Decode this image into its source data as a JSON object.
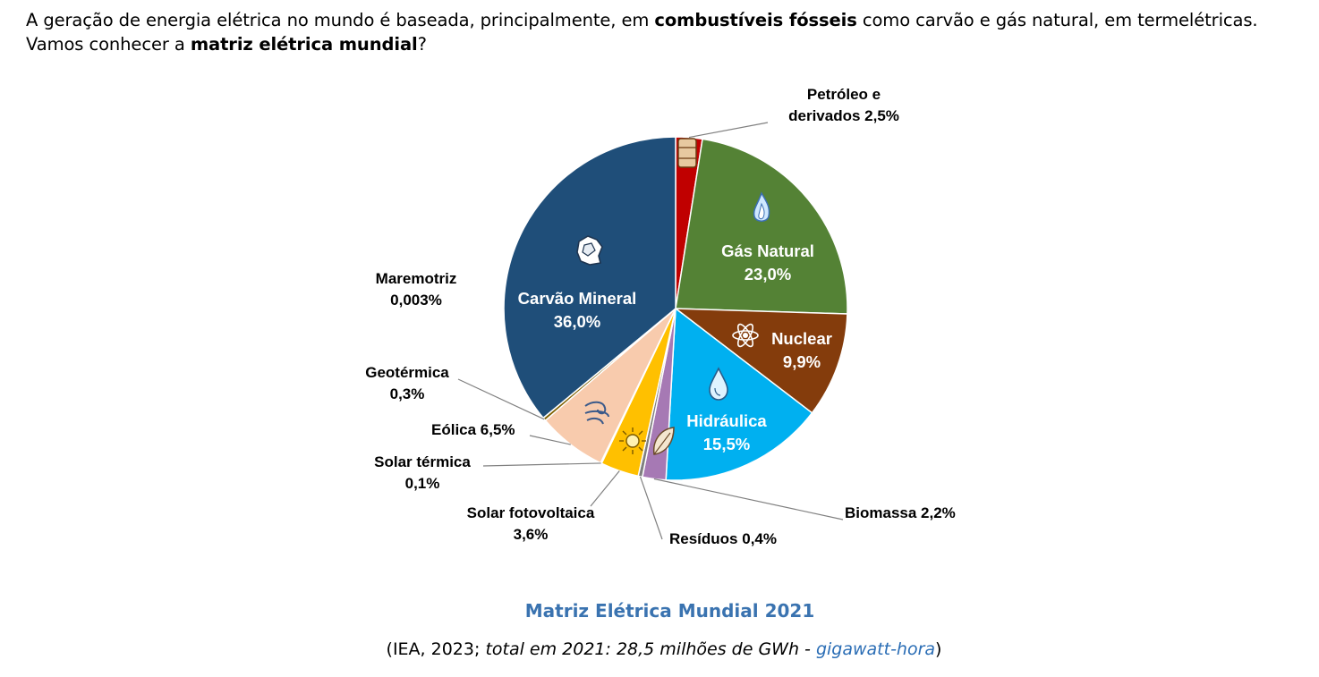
{
  "intro": {
    "part1": "A geração de energia elétrica no mundo é baseada, principalmente, em ",
    "bold1": "combustíveis fósseis",
    "part2": " como carvão e gás natural, em termelétricas. Vamos conhecer a ",
    "bold2": "matriz elétrica mundial",
    "part3": "?"
  },
  "chart_data": {
    "type": "pie",
    "title": "Matriz Elétrica Mundial 2021",
    "unit": "%",
    "slices": [
      {
        "name": "Petróleo e derivados",
        "value": 2.5,
        "label": "2,5%",
        "color": "#c00000",
        "icon": "oil-barrel-icon"
      },
      {
        "name": "Gás Natural",
        "value": 23.0,
        "label": "23,0%",
        "color": "#548235",
        "icon": "flame-icon"
      },
      {
        "name": "Nuclear",
        "value": 9.9,
        "label": "9,9%",
        "color": "#843c0c",
        "icon": "atom-icon"
      },
      {
        "name": "Hidráulica",
        "value": 15.5,
        "label": "15,5%",
        "color": "#00b0f0",
        "icon": "water-drop-icon"
      },
      {
        "name": "Biomassa",
        "value": 2.2,
        "label": "2,2%",
        "color": "#a679b4",
        "icon": "leaf-icon"
      },
      {
        "name": "Resíduos",
        "value": 0.4,
        "label": "0,4%",
        "color": "#7f7f7f",
        "icon": ""
      },
      {
        "name": "Solar fotovoltaica",
        "value": 3.6,
        "label": "3,6%",
        "color": "#ffc000",
        "icon": "sun-icon"
      },
      {
        "name": "Solar térmica",
        "value": 0.1,
        "label": "0,1%",
        "color": "#ffe699",
        "icon": ""
      },
      {
        "name": "Eólica",
        "value": 6.5,
        "label": "6,5%",
        "color": "#f8cbad",
        "icon": "wind-icon"
      },
      {
        "name": "Geotérmica",
        "value": 0.3,
        "label": "0,3%",
        "color": "#7f6000",
        "icon": ""
      },
      {
        "name": "Maremotriz",
        "value": 0.003,
        "label": "0,003%",
        "color": "#1f4e79",
        "icon": ""
      },
      {
        "name": "Carvão Mineral",
        "value": 36.0,
        "label": "36,0%",
        "color": "#1f4e79",
        "icon": "coal-icon"
      }
    ]
  },
  "labels": {
    "petroleo": [
      "Petróleo e",
      "derivados 2,5%"
    ],
    "gas": [
      "Gás Natural",
      "23,0%"
    ],
    "nuclear": [
      "Nuclear",
      "9,9%"
    ],
    "hidraulica": [
      "Hidráulica",
      "15,5%"
    ],
    "biomassa": [
      "Biomassa 2,2%"
    ],
    "residuos": [
      "Resíduos 0,4%"
    ],
    "solar_foto": [
      "Solar fotovoltaica",
      "3,6%"
    ],
    "solar_termica": [
      "Solar térmica",
      "0,1%"
    ],
    "eolica": [
      "Eólica 6,5%"
    ],
    "geotermica": [
      "Geotérmica",
      "0,3%"
    ],
    "maremotriz": [
      "Maremotriz",
      "0,003%"
    ],
    "carvao": [
      "Carvão Mineral",
      "36,0%"
    ]
  },
  "source": {
    "open": "(IEA, 2023; ",
    "italic": "total em 2021: 28,5 milhões de GWh - ",
    "link": "gigawatt-hora",
    "close": ")"
  },
  "colors": {
    "title": "#3a73b0",
    "link": "#2a6db5",
    "leader_line": "#808080"
  }
}
